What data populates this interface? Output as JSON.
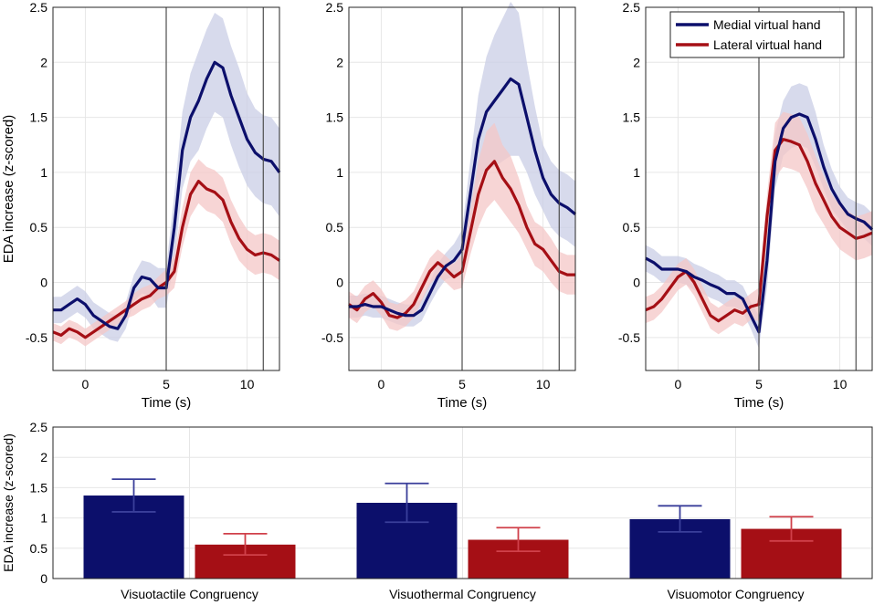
{
  "colors": {
    "medial": "#0c0f6b",
    "lateral": "#a50f15",
    "medial_band": "#c9cde6",
    "lateral_band": "#f4c7c7",
    "grid": "#e6e6e6",
    "axis": "#262626",
    "event_line": "#4d4d4d"
  },
  "chart_data": [
    {
      "type": "line",
      "panel": "visuotactile",
      "xlabel": "Time (s)",
      "ylabel": "EDA increase (z-scored)",
      "xlim": [
        -2,
        12
      ],
      "ylim": [
        -0.8,
        2.5
      ],
      "xticks": [
        0,
        5,
        10
      ],
      "yticks": [
        -0.5,
        0,
        0.5,
        1,
        1.5,
        2,
        2.5
      ],
      "event_lines": [
        5,
        11
      ],
      "series": [
        {
          "name": "Medial virtual hand",
          "x": [
            -2,
            -1.5,
            -1,
            -0.5,
            0,
            0.5,
            1,
            1.5,
            2,
            2.5,
            3,
            3.5,
            4,
            4.5,
            5,
            5.5,
            6,
            6.5,
            7,
            7.5,
            8,
            8.5,
            9,
            9.5,
            10,
            10.5,
            11,
            11.5,
            12
          ],
          "y": [
            -0.25,
            -0.25,
            -0.2,
            -0.15,
            -0.2,
            -0.3,
            -0.35,
            -0.4,
            -0.42,
            -0.3,
            -0.05,
            0.05,
            0.03,
            -0.05,
            -0.05,
            0.5,
            1.2,
            1.5,
            1.65,
            1.85,
            2.0,
            1.95,
            1.7,
            1.5,
            1.3,
            1.18,
            1.12,
            1.1,
            1.0
          ],
          "band": [
            0.12,
            0.12,
            0.12,
            0.12,
            0.12,
            0.12,
            0.12,
            0.12,
            0.12,
            0.12,
            0.12,
            0.15,
            0.15,
            0.18,
            0.18,
            0.3,
            0.35,
            0.4,
            0.45,
            0.45,
            0.45,
            0.45,
            0.45,
            0.45,
            0.42,
            0.4,
            0.4,
            0.4,
            0.4
          ]
        },
        {
          "name": "Lateral virtual hand",
          "x": [
            -2,
            -1.5,
            -1,
            -0.5,
            0,
            0.5,
            1,
            1.5,
            2,
            2.5,
            3,
            3.5,
            4,
            4.5,
            5,
            5.5,
            6,
            6.5,
            7,
            7.5,
            8,
            8.5,
            9,
            9.5,
            10,
            10.5,
            11,
            11.5,
            12
          ],
          "y": [
            -0.45,
            -0.48,
            -0.42,
            -0.45,
            -0.5,
            -0.45,
            -0.4,
            -0.35,
            -0.3,
            -0.25,
            -0.2,
            -0.15,
            -0.12,
            -0.05,
            0.0,
            0.1,
            0.5,
            0.8,
            0.92,
            0.85,
            0.82,
            0.75,
            0.55,
            0.4,
            0.3,
            0.25,
            0.27,
            0.25,
            0.2
          ],
          "band": [
            0.08,
            0.08,
            0.08,
            0.08,
            0.08,
            0.08,
            0.08,
            0.08,
            0.08,
            0.08,
            0.1,
            0.1,
            0.1,
            0.1,
            0.12,
            0.15,
            0.18,
            0.2,
            0.2,
            0.2,
            0.2,
            0.2,
            0.2,
            0.2,
            0.18,
            0.18,
            0.18,
            0.18,
            0.18
          ]
        }
      ]
    },
    {
      "type": "line",
      "panel": "visuothermal",
      "xlabel": "Time (s)",
      "ylabel": "",
      "xlim": [
        -2,
        12
      ],
      "ylim": [
        -0.8,
        2.5
      ],
      "xticks": [
        0,
        5,
        10
      ],
      "yticks": [
        -0.5,
        0,
        0.5,
        1,
        1.5,
        2,
        2.5
      ],
      "event_lines": [
        5,
        11
      ],
      "series": [
        {
          "name": "Medial virtual hand",
          "x": [
            -2,
            -1.5,
            -1,
            -0.5,
            0,
            0.5,
            1,
            1.5,
            2,
            2.5,
            3,
            3.5,
            4,
            4.5,
            5,
            5.5,
            6,
            6.5,
            7,
            7.5,
            8,
            8.5,
            9,
            9.5,
            10,
            10.5,
            11,
            11.5,
            12
          ],
          "y": [
            -0.22,
            -0.22,
            -0.2,
            -0.22,
            -0.22,
            -0.25,
            -0.28,
            -0.3,
            -0.3,
            -0.25,
            -0.1,
            0.05,
            0.15,
            0.2,
            0.3,
            0.8,
            1.3,
            1.55,
            1.65,
            1.75,
            1.85,
            1.8,
            1.5,
            1.2,
            0.95,
            0.8,
            0.72,
            0.68,
            0.62
          ],
          "band": [
            0.1,
            0.1,
            0.1,
            0.1,
            0.1,
            0.1,
            0.1,
            0.1,
            0.1,
            0.1,
            0.1,
            0.12,
            0.12,
            0.15,
            0.18,
            0.3,
            0.4,
            0.5,
            0.6,
            0.65,
            0.7,
            0.65,
            0.5,
            0.4,
            0.3,
            0.3,
            0.3,
            0.3,
            0.3
          ]
        },
        {
          "name": "Lateral virtual hand",
          "x": [
            -2,
            -1.5,
            -1,
            -0.5,
            0,
            0.5,
            1,
            1.5,
            2,
            2.5,
            3,
            3.5,
            4,
            4.5,
            5,
            5.5,
            6,
            6.5,
            7,
            7.5,
            8,
            8.5,
            9,
            9.5,
            10,
            10.5,
            11,
            11.5,
            12
          ],
          "y": [
            -0.2,
            -0.25,
            -0.15,
            -0.1,
            -0.18,
            -0.3,
            -0.32,
            -0.28,
            -0.2,
            -0.05,
            0.1,
            0.18,
            0.12,
            0.05,
            0.1,
            0.45,
            0.8,
            1.02,
            1.1,
            0.95,
            0.85,
            0.7,
            0.5,
            0.35,
            0.3,
            0.2,
            0.1,
            0.07,
            0.07
          ],
          "band": [
            0.12,
            0.12,
            0.12,
            0.12,
            0.12,
            0.12,
            0.12,
            0.12,
            0.12,
            0.12,
            0.12,
            0.12,
            0.12,
            0.12,
            0.15,
            0.2,
            0.3,
            0.35,
            0.35,
            0.3,
            0.3,
            0.25,
            0.2,
            0.2,
            0.2,
            0.2,
            0.18,
            0.18,
            0.18
          ]
        }
      ]
    },
    {
      "type": "line",
      "panel": "visuomotor",
      "xlabel": "Time (s)",
      "ylabel": "",
      "xlim": [
        -2,
        12
      ],
      "ylim": [
        -0.8,
        2.5
      ],
      "xticks": [
        0,
        5,
        10
      ],
      "yticks": [
        -0.5,
        0,
        0.5,
        1,
        1.5,
        2,
        2.5
      ],
      "event_lines": [
        5,
        11
      ],
      "legend": {
        "position": "top-right",
        "entries": [
          "Medial virtual hand",
          "Lateral virtual hand"
        ]
      },
      "series": [
        {
          "name": "Medial virtual hand",
          "x": [
            -2,
            -1.5,
            -1,
            -0.5,
            0,
            0.5,
            1,
            1.5,
            2,
            2.5,
            3,
            3.5,
            4,
            4.5,
            5,
            5.5,
            6,
            6.5,
            7,
            7.5,
            8,
            8.5,
            9,
            9.5,
            10,
            10.5,
            11,
            11.5,
            12
          ],
          "y": [
            0.22,
            0.18,
            0.12,
            0.12,
            0.12,
            0.1,
            0.05,
            0.02,
            -0.02,
            -0.05,
            -0.1,
            -0.1,
            -0.15,
            -0.3,
            -0.45,
            0.2,
            1.1,
            1.4,
            1.5,
            1.53,
            1.5,
            1.3,
            1.05,
            0.85,
            0.72,
            0.62,
            0.58,
            0.55,
            0.48
          ],
          "band": [
            0.12,
            0.12,
            0.12,
            0.12,
            0.12,
            0.12,
            0.12,
            0.12,
            0.12,
            0.12,
            0.12,
            0.12,
            0.12,
            0.12,
            0.15,
            0.25,
            0.25,
            0.25,
            0.28,
            0.28,
            0.28,
            0.25,
            0.2,
            0.18,
            0.15,
            0.15,
            0.15,
            0.15,
            0.15
          ]
        },
        {
          "name": "Lateral virtual hand",
          "x": [
            -2,
            -1.5,
            -1,
            -0.5,
            0,
            0.5,
            1,
            1.5,
            2,
            2.5,
            3,
            3.5,
            4,
            4.5,
            5,
            5.5,
            6,
            6.5,
            7,
            7.5,
            8,
            8.5,
            9,
            9.5,
            10,
            10.5,
            11,
            11.5,
            12
          ],
          "y": [
            -0.25,
            -0.22,
            -0.15,
            -0.05,
            0.05,
            0.1,
            0.0,
            -0.15,
            -0.3,
            -0.35,
            -0.3,
            -0.25,
            -0.28,
            -0.22,
            -0.2,
            0.6,
            1.2,
            1.3,
            1.28,
            1.25,
            1.1,
            0.9,
            0.75,
            0.6,
            0.5,
            0.45,
            0.4,
            0.42,
            0.45
          ],
          "band": [
            0.12,
            0.12,
            0.12,
            0.12,
            0.12,
            0.12,
            0.12,
            0.12,
            0.12,
            0.12,
            0.12,
            0.12,
            0.12,
            0.12,
            0.15,
            0.2,
            0.25,
            0.25,
            0.25,
            0.25,
            0.25,
            0.25,
            0.22,
            0.2,
            0.2,
            0.2,
            0.2,
            0.2,
            0.2
          ]
        }
      ]
    },
    {
      "type": "bar",
      "panel": "summary",
      "ylabel": "EDA increase (z-scored)",
      "ylim": [
        0,
        2.5
      ],
      "yticks": [
        0,
        0.5,
        1,
        1.5,
        2,
        2.5
      ],
      "categories": [
        "Visuotactile Congruency",
        "Visuothermal Congruency",
        "Visuomotor Congruency"
      ],
      "series": [
        {
          "name": "Medial virtual hand",
          "values": [
            1.37,
            1.25,
            0.98
          ],
          "err_low": [
            1.1,
            0.93,
            0.77
          ],
          "err_high": [
            1.64,
            1.57,
            1.2
          ]
        },
        {
          "name": "Lateral virtual hand",
          "values": [
            0.56,
            0.64,
            0.82
          ],
          "err_low": [
            0.39,
            0.45,
            0.62
          ],
          "err_high": [
            0.74,
            0.84,
            1.02
          ]
        }
      ]
    }
  ]
}
